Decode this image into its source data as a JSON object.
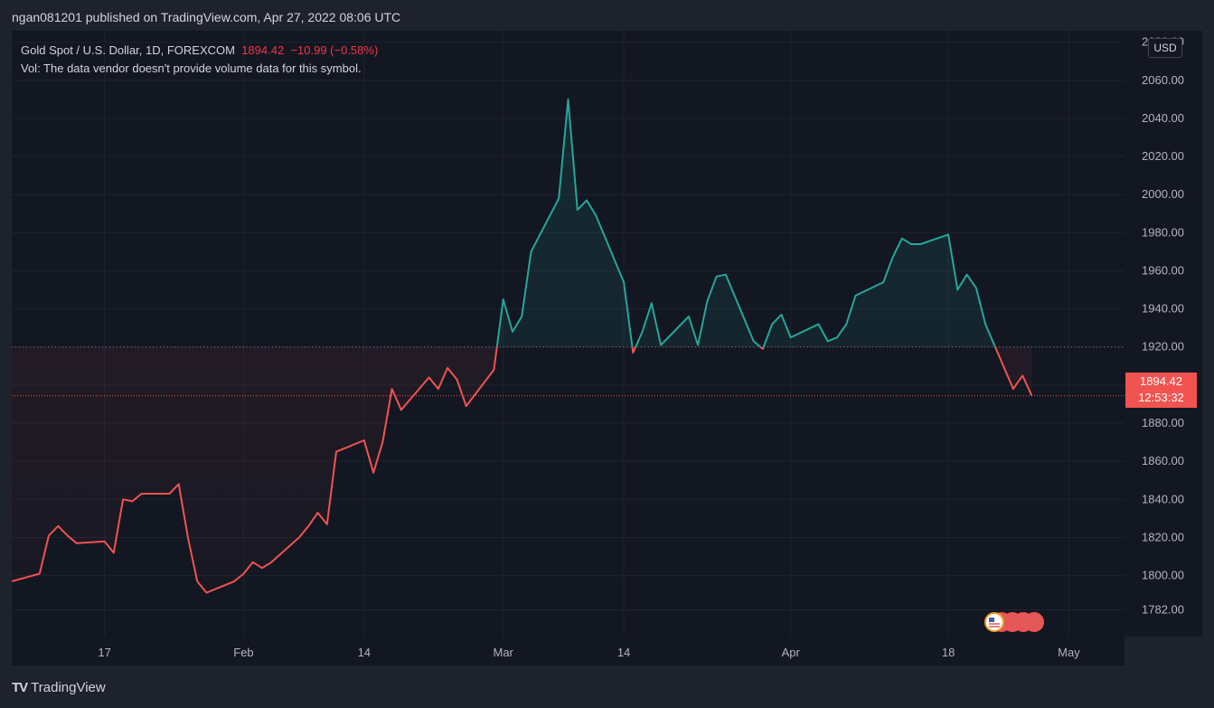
{
  "header": {
    "published_by": "ngan081201 published on TradingView.com, Apr 27, 2022 08:06 UTC"
  },
  "legend": {
    "symbol": "Gold Spot / U.S. Dollar, 1D, FOREXCOM",
    "price": "1894.42",
    "change": "−10.99 (−0.58%)",
    "volume_note": "Vol: The data vendor doesn't provide volume data for this symbol."
  },
  "axis": {
    "currency": "USD"
  },
  "price_badge": {
    "price": "1894.42",
    "countdown": "12:53:32"
  },
  "brand": {
    "logo_text": "TradingView",
    "logo_mark": "TV"
  },
  "colors": {
    "up": "#26a69a",
    "down": "#f05350",
    "background": "#131722"
  },
  "chart_data": {
    "type": "area",
    "series_style": "baseline",
    "baseline": 1920,
    "ylim": [
      1768,
      2086
    ],
    "y_ticks": [
      1782,
      1800,
      1820,
      1840,
      1860,
      1880,
      1900,
      1920,
      1940,
      1960,
      1980,
      2000,
      2020,
      2040,
      2060,
      2080
    ],
    "y_tick_labels": [
      "1782.00",
      "1800.00",
      "1820.00",
      "1840.00",
      "1860.00",
      "1880.00",
      "1900.00",
      "1920.00",
      "1940.00",
      "1960.00",
      "1980.00",
      "2000.00",
      "2020.00",
      "2040.00",
      "2060.00",
      "2080.00"
    ],
    "xlim": [
      "2022-01-07",
      "2022-05-07"
    ],
    "x_ticks": [
      {
        "date": "2022-01-17",
        "label": "17"
      },
      {
        "date": "2022-02-01",
        "label": "Feb"
      },
      {
        "date": "2022-02-14",
        "label": "14"
      },
      {
        "date": "2022-03-01",
        "label": "Mar"
      },
      {
        "date": "2022-03-14",
        "label": "14"
      },
      {
        "date": "2022-04-01",
        "label": "Apr"
      },
      {
        "date": "2022-04-18",
        "label": "18"
      },
      {
        "date": "2022-05-01",
        "label": "May"
      }
    ],
    "last_price": 1894.42,
    "points": [
      [
        "2022-01-07",
        1797
      ],
      [
        "2022-01-10",
        1801
      ],
      [
        "2022-01-11",
        1821
      ],
      [
        "2022-01-12",
        1826
      ],
      [
        "2022-01-13",
        1821
      ],
      [
        "2022-01-14",
        1817
      ],
      [
        "2022-01-17",
        1818
      ],
      [
        "2022-01-18",
        1812
      ],
      [
        "2022-01-19",
        1840
      ],
      [
        "2022-01-20",
        1839
      ],
      [
        "2022-01-21",
        1843
      ],
      [
        "2022-01-24",
        1843
      ],
      [
        "2022-01-25",
        1848
      ],
      [
        "2022-01-26",
        1820
      ],
      [
        "2022-01-27",
        1797
      ],
      [
        "2022-01-28",
        1791
      ],
      [
        "2022-01-31",
        1797
      ],
      [
        "2022-02-01",
        1801
      ],
      [
        "2022-02-02",
        1807
      ],
      [
        "2022-02-03",
        1804
      ],
      [
        "2022-02-04",
        1807
      ],
      [
        "2022-02-07",
        1820
      ],
      [
        "2022-02-08",
        1826
      ],
      [
        "2022-02-09",
        1833
      ],
      [
        "2022-02-10",
        1827
      ],
      [
        "2022-02-11",
        1865
      ],
      [
        "2022-02-14",
        1871
      ],
      [
        "2022-02-15",
        1854
      ],
      [
        "2022-02-16",
        1870
      ],
      [
        "2022-02-17",
        1898
      ],
      [
        "2022-02-18",
        1887
      ],
      [
        "2022-02-21",
        1904
      ],
      [
        "2022-02-22",
        1898
      ],
      [
        "2022-02-23",
        1909
      ],
      [
        "2022-02-24",
        1903
      ],
      [
        "2022-02-25",
        1889
      ],
      [
        "2022-02-28",
        1908
      ],
      [
        "2022-03-01",
        1945
      ],
      [
        "2022-03-02",
        1928
      ],
      [
        "2022-03-03",
        1936
      ],
      [
        "2022-03-04",
        1970
      ],
      [
        "2022-03-07",
        1998
      ],
      [
        "2022-03-08",
        2050
      ],
      [
        "2022-03-09",
        1992
      ],
      [
        "2022-03-10",
        1997
      ],
      [
        "2022-03-11",
        1989
      ],
      [
        "2022-03-14",
        1954
      ],
      [
        "2022-03-15",
        1917
      ],
      [
        "2022-03-16",
        1928
      ],
      [
        "2022-03-17",
        1943
      ],
      [
        "2022-03-18",
        1921
      ],
      [
        "2022-03-21",
        1936
      ],
      [
        "2022-03-22",
        1921
      ],
      [
        "2022-03-23",
        1944
      ],
      [
        "2022-03-24",
        1957
      ],
      [
        "2022-03-25",
        1958
      ],
      [
        "2022-03-28",
        1923
      ],
      [
        "2022-03-29",
        1919
      ],
      [
        "2022-03-30",
        1932
      ],
      [
        "2022-03-31",
        1937
      ],
      [
        "2022-04-01",
        1925
      ],
      [
        "2022-04-04",
        1932
      ],
      [
        "2022-04-05",
        1923
      ],
      [
        "2022-04-06",
        1925
      ],
      [
        "2022-04-07",
        1932
      ],
      [
        "2022-04-08",
        1947
      ],
      [
        "2022-04-11",
        1954
      ],
      [
        "2022-04-12",
        1967
      ],
      [
        "2022-04-13",
        1977
      ],
      [
        "2022-04-14",
        1974
      ],
      [
        "2022-04-15",
        1974
      ],
      [
        "2022-04-18",
        1979
      ],
      [
        "2022-04-19",
        1950
      ],
      [
        "2022-04-20",
        1958
      ],
      [
        "2022-04-21",
        1951
      ],
      [
        "2022-04-22",
        1932
      ],
      [
        "2022-04-25",
        1898
      ],
      [
        "2022-04-26",
        1905
      ],
      [
        "2022-04-27",
        1894.42
      ]
    ]
  }
}
